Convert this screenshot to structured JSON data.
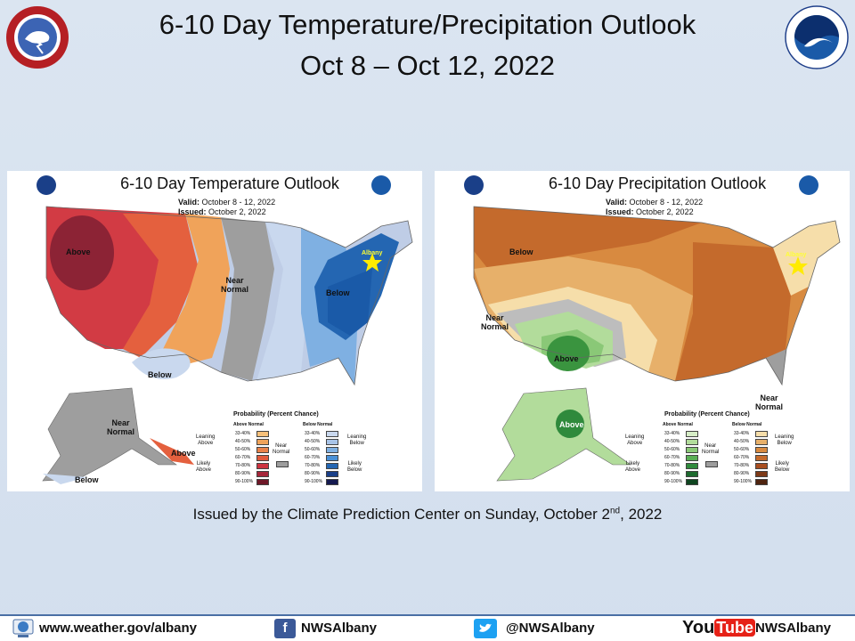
{
  "header": {
    "title_line1": "6-10 Day Temperature/Precipitation  Outlook",
    "title_line2": "Oct 8 – Oct 12, 2022"
  },
  "panels": {
    "temperature": {
      "title": "6-10 Day Temperature Outlook",
      "valid_label": "Valid:",
      "valid_value": "October 8 - 12, 2022",
      "issued_label": "Issued:",
      "issued_value": "October 2, 2022",
      "labels": {
        "above": "Above",
        "near_normal": "Near\nNormal",
        "below_east": "Below",
        "below_south": "Below",
        "albany": "Albany",
        "ak_near_normal": "Near\nNormal",
        "ak_above": "Above",
        "ak_below": "Below"
      },
      "legend": {
        "heading": "Probability (Percent Chance)",
        "left_sub": "Above Normal",
        "right_sub": "Below Normal",
        "near_normal": "Near\nNormal",
        "leaning_above": "Leaning\nAbove",
        "likely_above": "Likely\nAbove",
        "leaning_below": "Leaning\nBelow",
        "likely_below": "Likely\nBelow",
        "ranges": [
          "33-40%",
          "40-50%",
          "50-60%",
          "60-70%",
          "70-80%",
          "80-90%",
          "90-100%"
        ],
        "left_colors": [
          "#f6c07a",
          "#f0a35a",
          "#e9824a",
          "#e05a3c",
          "#cc3340",
          "#a5263a",
          "#6e1828"
        ],
        "right_colors": [
          "#c9d8ee",
          "#a8c4e8",
          "#7fb0e2",
          "#4a90d6",
          "#2466b2",
          "#1a3f88",
          "#151a50"
        ]
      }
    },
    "precipitation": {
      "title": "6-10 Day Precipitation Outlook",
      "valid_label": "Valid:",
      "valid_value": "October 8 - 12, 2022",
      "issued_label": "Issued:",
      "issued_value": "October 2, 2022",
      "labels": {
        "below_nw": "Below",
        "near_normal": "Near\nNormal",
        "above": "Above",
        "albany": "Albany",
        "near_normal_se": "Near\nNormal",
        "ak_above": "Above"
      },
      "legend": {
        "heading": "Probability (Percent Chance)",
        "left_sub": "Above Normal",
        "right_sub": "Below Normal",
        "near_normal": "Near\nNormal",
        "leaning_above": "Leaning\nAbove",
        "likely_above": "Likely\nAbove",
        "leaning_below": "Leaning\nBelow",
        "likely_below": "Likely\nBelow",
        "ranges": [
          "33-40%",
          "40-50%",
          "50-60%",
          "60-70%",
          "70-80%",
          "80-90%",
          "90-100%"
        ],
        "left_colors": [
          "#d6edc6",
          "#b2dc9b",
          "#8ac877",
          "#5aae55",
          "#2f8a3c",
          "#1d6a2e",
          "#0f4520"
        ],
        "right_colors": [
          "#f6deaa",
          "#e7b06a",
          "#d88a40",
          "#c46a2c",
          "#a84e20",
          "#7d3a18",
          "#4f2410"
        ]
      }
    }
  },
  "issued_text": {
    "before": "Issued by the Climate Prediction Center on Sunday, October 2",
    "sup": "nd",
    "after": ", 2022"
  },
  "footer": {
    "website": "www.weather.gov/albany",
    "facebook": "NWSAlbany",
    "twitter": "@NWSAlbany",
    "youtube_logo_you": "You",
    "youtube_logo_tube": "Tube",
    "youtube": "NWSAlbany"
  },
  "colors": {
    "background": "#d6e2f0",
    "footer_border": "#4a6fa5",
    "facebook_blue": "#3b5998",
    "twitter_blue": "#1da1f2",
    "youtube_red": "#e62117"
  },
  "icons": [
    "nws-logo-icon",
    "noaa-logo-icon",
    "globe-icon",
    "facebook-icon",
    "twitter-icon",
    "youtube-icon",
    "star-icon"
  ]
}
